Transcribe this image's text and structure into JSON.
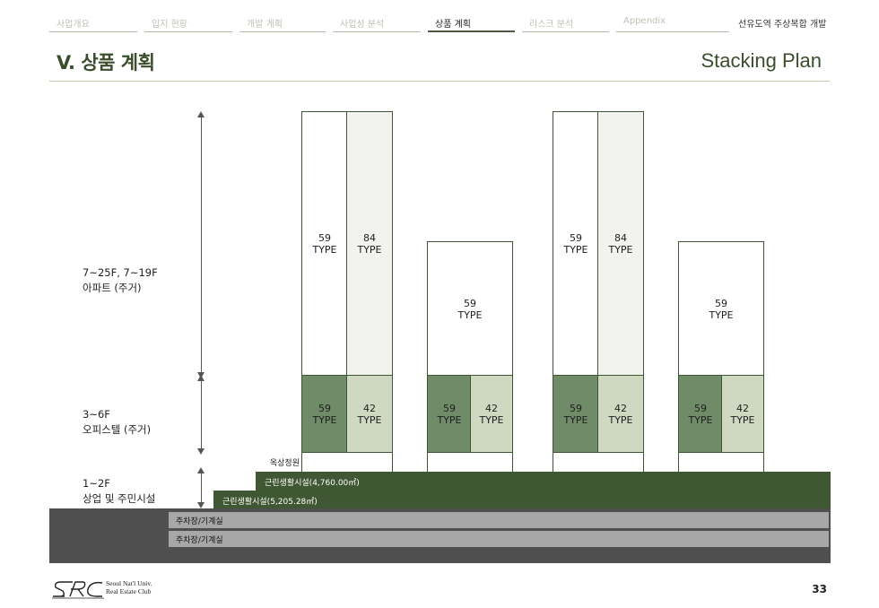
{
  "nav": {
    "tabs": [
      {
        "label": "사업개요"
      },
      {
        "label": "입지 현황"
      },
      {
        "label": "개발 계획"
      },
      {
        "label": "사업성 분석"
      },
      {
        "label": "상품 계획"
      },
      {
        "label": "리스크 분석"
      },
      {
        "label": "Appendix"
      }
    ],
    "active_tab": "상품 계획",
    "project_title": "선유도역 주상복합 개발"
  },
  "page": {
    "title": "V. 상품 계획",
    "subtitle": "Stacking Plan",
    "number": "33"
  },
  "floors": {
    "upper": {
      "line1": "7~25F, 7~19F",
      "line2": "아파트 (주거)"
    },
    "middle": {
      "line1": "3~6F",
      "line2": "오피스텔 (주거)"
    },
    "lower": {
      "line1": "1~2F",
      "line2": "상업 및 주민시설"
    }
  },
  "buildings": {
    "b1": {
      "apt_left": {
        "num": "59",
        "type": "TYPE"
      },
      "apt_right": {
        "num": "84",
        "type": "TYPE"
      },
      "off_left": {
        "num": "59",
        "type": "TYPE"
      },
      "off_right": {
        "num": "42",
        "type": "TYPE"
      }
    },
    "b2": {
      "apt": {
        "num": "59",
        "type": "TYPE"
      },
      "off_left": {
        "num": "59",
        "type": "TYPE"
      },
      "off_right": {
        "num": "42",
        "type": "TYPE"
      }
    },
    "b3": {
      "apt_left": {
        "num": "59",
        "type": "TYPE"
      },
      "apt_right": {
        "num": "84",
        "type": "TYPE"
      },
      "off_left": {
        "num": "59",
        "type": "TYPE"
      },
      "off_right": {
        "num": "42",
        "type": "TYPE"
      }
    },
    "b4": {
      "apt": {
        "num": "59",
        "type": "TYPE"
      },
      "off_left": {
        "num": "59",
        "type": "TYPE"
      },
      "off_right": {
        "num": "42",
        "type": "TYPE"
      }
    }
  },
  "podium": {
    "roof_garden": "옥상정원",
    "level2": "근린생활시설(4,760.00㎡)",
    "level1": "근린생활시설(5,205.28㎡)",
    "parking1": "주차장/기계실",
    "parking2": "주차장/기계실"
  },
  "footer": {
    "logo_line1": "Seoul Nat'l Univ.",
    "logo_line2": "Real Estate Club"
  },
  "colors": {
    "accent": "#3a4d2c",
    "office_dark": "#6f8b67",
    "office_pale": "#cfd9c2",
    "podium_dark": "#3f5732",
    "parking": "#a7a7a7",
    "basement": "#4f4f4f"
  }
}
